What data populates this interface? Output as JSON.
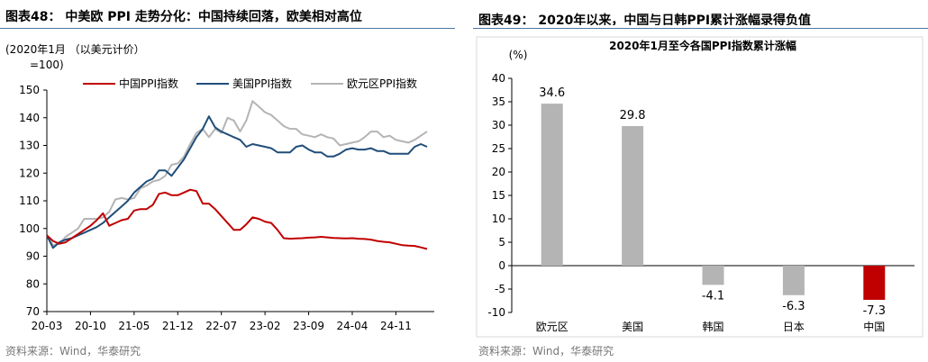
{
  "left": {
    "title": "图表48：  中美欧 PPI 走势分化：中国持续回落，欧美相对高位",
    "source": "资料来源：Wind，华泰研究",
    "chart_data": {
      "type": "line",
      "unit_line1": "(2020年1月 （以美元计价）",
      "unit_line2": "=100)",
      "ylim": [
        70,
        150
      ],
      "yticks": [
        70,
        80,
        90,
        100,
        110,
        120,
        130,
        140,
        150
      ],
      "xticks": [
        "20-03",
        "20-10",
        "21-05",
        "21-12",
        "22-07",
        "23-02",
        "23-09",
        "24-04",
        "24-11"
      ],
      "x": [
        "20-03",
        "20-04",
        "20-05",
        "20-06",
        "20-07",
        "20-08",
        "20-09",
        "20-10",
        "20-11",
        "20-12",
        "21-01",
        "21-02",
        "21-03",
        "21-04",
        "21-05",
        "21-06",
        "21-07",
        "21-08",
        "21-09",
        "21-10",
        "21-11",
        "21-12",
        "22-01",
        "22-02",
        "22-03",
        "22-04",
        "22-05",
        "22-06",
        "22-07",
        "22-08",
        "22-09",
        "22-10",
        "22-11",
        "22-12",
        "23-01",
        "23-02",
        "23-03",
        "23-04",
        "23-05",
        "23-06",
        "23-07",
        "23-08",
        "23-09",
        "23-10",
        "23-11",
        "23-12",
        "24-01",
        "24-02",
        "24-03",
        "24-04",
        "24-05",
        "24-06",
        "24-07",
        "24-08",
        "24-09",
        "24-10",
        "24-11",
        "24-12",
        "25-01",
        "25-02",
        "25-03",
        "25-04"
      ],
      "legend_position": "top",
      "grid": false,
      "series": [
        {
          "name": "中国PPI指数",
          "color": "#c00000",
          "values": [
            97.5,
            95.5,
            94.5,
            95,
            96.5,
            98,
            99.5,
            101,
            103,
            105.5,
            101,
            102,
            103,
            103.5,
            106.5,
            107,
            107,
            108.5,
            112.5,
            113,
            112,
            112,
            113,
            114,
            113.5,
            109,
            109,
            107,
            104.5,
            102,
            99.5,
            99.5,
            101.5,
            104,
            103.5,
            102.5,
            102,
            99.5,
            96.5,
            96.3,
            96.4,
            96.5,
            96.7,
            96.8,
            97,
            96.8,
            96.6,
            96.5,
            96.4,
            96.5,
            96.3,
            96.2,
            96,
            95.5,
            95.2,
            95,
            94.5,
            94,
            93.8,
            93.7,
            93.2,
            92.6
          ]
        },
        {
          "name": "美国PPI指数",
          "color": "#1f4e79",
          "values": [
            97.5,
            93,
            95,
            96,
            96.5,
            97.5,
            98.5,
            99.5,
            100.5,
            102,
            104,
            106,
            108,
            110,
            113,
            115,
            117,
            118,
            121,
            121,
            119,
            122,
            125,
            129,
            133,
            136,
            140.5,
            136.5,
            135,
            134,
            133,
            132,
            129.5,
            130.5,
            130,
            129.5,
            129,
            127.5,
            127.5,
            127.5,
            129.5,
            130,
            128.5,
            127.5,
            127.5,
            126,
            126,
            127,
            128.5,
            129,
            128.5,
            128.5,
            129,
            128,
            128,
            127,
            127,
            127,
            127,
            129.5,
            130.5,
            129.5
          ]
        },
        {
          "name": "欧元区PPI指数",
          "color": "#b4b4b4",
          "values": [
            97.5,
            94,
            94.5,
            97,
            98.5,
            100,
            103.5,
            103.5,
            103.5,
            104,
            106,
            110.5,
            111,
            110.5,
            111,
            114.5,
            115.5,
            117,
            117.5,
            119,
            123,
            123.5,
            126,
            130.5,
            134.5,
            136,
            133,
            136,
            134.5,
            140,
            139,
            135,
            139,
            146,
            144,
            142,
            141,
            139,
            137,
            136,
            136,
            134,
            133.5,
            133,
            134,
            133,
            132.5,
            130,
            130.5,
            131,
            131.5,
            133,
            135,
            135,
            133,
            133.5,
            132,
            131.5,
            131,
            132,
            133.5,
            135
          ]
        }
      ]
    }
  },
  "right": {
    "title": "图表49：  2020年以来，中国与日韩PPI累计涨幅录得负值",
    "source": "资料来源：Wind，华泰研究",
    "chart_data": {
      "type": "bar",
      "title": "2020年1月至今各国PPI指数累计涨幅",
      "ylabel": "(%)",
      "ylim": [
        -10,
        40
      ],
      "yticks": [
        -10,
        -5,
        0,
        5,
        10,
        15,
        20,
        25,
        30,
        35,
        40
      ],
      "categories": [
        "欧元区",
        "美国",
        "韩国",
        "日本",
        "中国"
      ],
      "values": [
        34.6,
        29.8,
        -4.1,
        -6.3,
        -7.3
      ],
      "value_labels": [
        "34.6",
        "29.8",
        "-4.1",
        "-6.3",
        "-7.3"
      ],
      "colors": [
        "#b4b4b4",
        "#b4b4b4",
        "#b4b4b4",
        "#b4b4b4",
        "#c00000"
      ]
    }
  }
}
